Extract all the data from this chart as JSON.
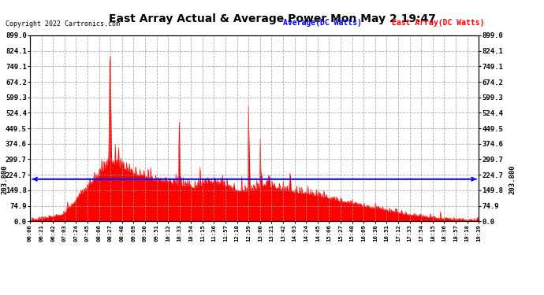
{
  "title": "East Array Actual & Average Power Mon May 2 19:47",
  "copyright": "Copyright 2022 Cartronics.com",
  "legend_avg": "Average(DC Watts)",
  "legend_east": "East Array(DC Watts)",
  "avg_value": 203.8,
  "avg_label": "203.800",
  "yticks": [
    0.0,
    74.9,
    149.8,
    224.7,
    299.7,
    374.6,
    449.5,
    524.4,
    599.3,
    674.2,
    749.1,
    824.1,
    899.0
  ],
  "ymax": 899.0,
  "ymin": 0.0,
  "fill_color": "#FF0000",
  "line_color": "#FF0000",
  "avg_line_color": "#0000FF",
  "background_color": "#FFFFFF",
  "grid_color": "#999999",
  "title_color": "#000000",
  "copyright_color": "#000000",
  "x_labels": [
    "06:00",
    "06:21",
    "06:42",
    "07:03",
    "07:24",
    "07:45",
    "08:06",
    "08:27",
    "08:48",
    "09:09",
    "09:30",
    "09:51",
    "10:12",
    "10:33",
    "10:54",
    "11:15",
    "11:36",
    "11:57",
    "12:18",
    "12:39",
    "13:00",
    "13:21",
    "13:42",
    "14:03",
    "14:24",
    "14:45",
    "15:06",
    "15:27",
    "15:48",
    "16:09",
    "16:30",
    "16:51",
    "17:12",
    "17:33",
    "17:54",
    "18:15",
    "18:36",
    "18:57",
    "19:18",
    "19:39"
  ]
}
